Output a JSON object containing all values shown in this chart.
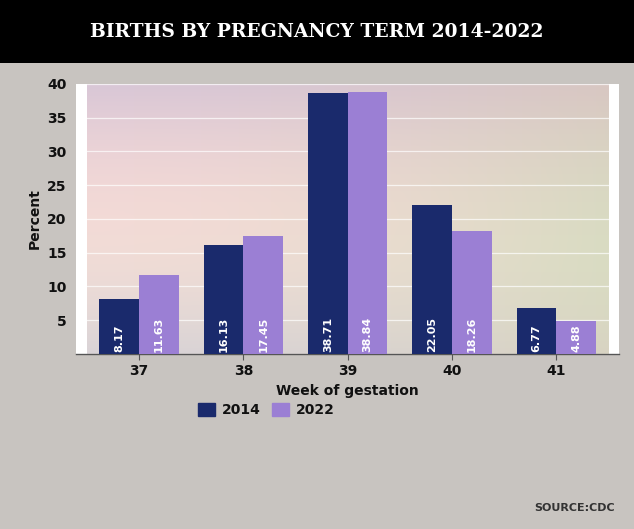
{
  "title": "BIRTHS BY PREGNANCY TERM 2014-2022",
  "xlabel": "Week of gestation",
  "ylabel": "Percent",
  "categories": [
    "37",
    "38",
    "39",
    "40",
    "41"
  ],
  "values_2014": [
    8.17,
    16.13,
    38.71,
    22.05,
    6.77
  ],
  "values_2022": [
    11.63,
    17.45,
    38.84,
    18.26,
    4.88
  ],
  "color_2014": "#1a2a6c",
  "color_2022": "#9b7fd4",
  "ylim": [
    0,
    40
  ],
  "yticks": [
    0,
    5,
    10,
    15,
    20,
    25,
    30,
    35,
    40
  ],
  "bar_width": 0.38,
  "legend_labels": [
    "2014",
    "2022"
  ],
  "source_text": "SOURCE:CDC",
  "title_bg_color": "#000000",
  "title_text_color": "#ffffff",
  "bar_label_color": "#ffffff",
  "bar_label_fontsize": 8,
  "axis_label_fontsize": 10,
  "tick_fontsize": 10,
  "legend_fontsize": 10,
  "fig_bg_color": "#d8d0c8",
  "bg_colors": [
    [
      "#e8d5c8",
      "#dcc8bc",
      "#d4beb4"
    ],
    [
      "#e0cfc8",
      "#d8c4bc",
      "#ccbab4"
    ],
    [
      "#d8ccc8",
      "#d0c0bc",
      "#c8b8b4"
    ]
  ]
}
